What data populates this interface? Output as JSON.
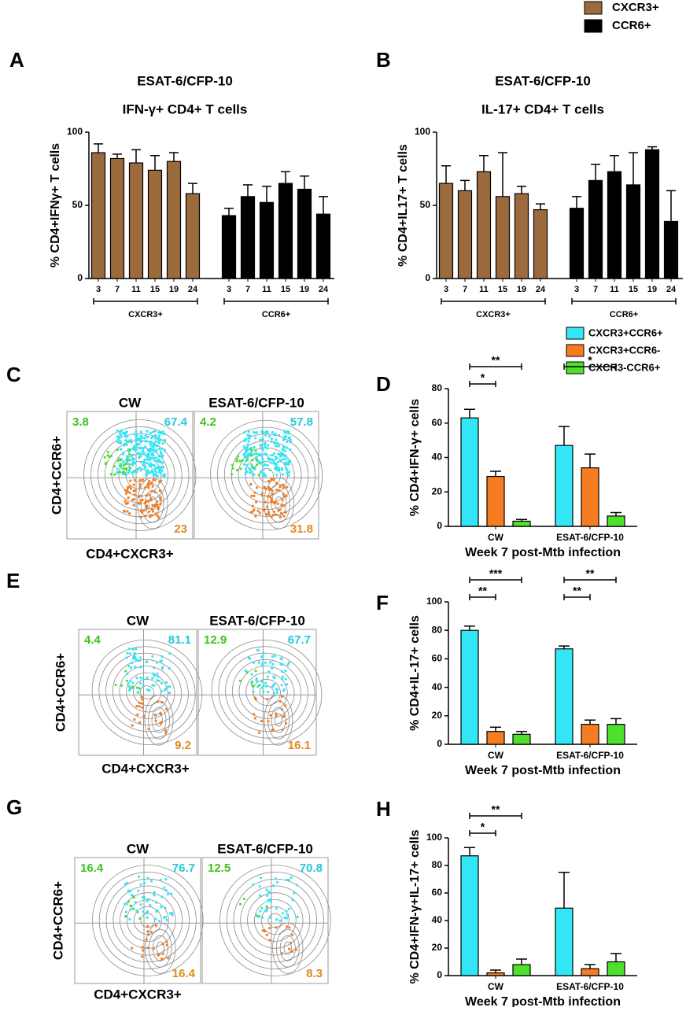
{
  "chart_data": [
    {
      "type": "bar",
      "panel": "A",
      "title": "ESAT-6/CFP-10",
      "subtitle": "IFN-γ+ CD4+ T cells",
      "y_label": "% CD4+IFNγ+ T cells",
      "categories": [
        "3",
        "7",
        "11",
        "15",
        "19",
        "24"
      ],
      "series": [
        {
          "name": "CXCR3+",
          "color": "#9b6a3d",
          "values": [
            86,
            82,
            79,
            74,
            80,
            58
          ],
          "errors": [
            6,
            3,
            9,
            10,
            6,
            7
          ]
        },
        {
          "name": "CCR6+",
          "color": "#000000",
          "values": [
            43,
            56,
            52,
            65,
            61,
            44
          ],
          "errors": [
            5,
            8,
            11,
            8,
            9,
            12
          ]
        }
      ],
      "ylim": [
        0,
        100
      ],
      "yticks": [
        0,
        50,
        100
      ]
    },
    {
      "type": "bar",
      "panel": "B",
      "title": "ESAT-6/CFP-10",
      "subtitle": "IL-17+ CD4+ T cells",
      "y_label": "% CD4+IL17+ T cells",
      "categories": [
        "3",
        "7",
        "11",
        "15",
        "19",
        "24"
      ],
      "series": [
        {
          "name": "CXCR3+",
          "color": "#9b6a3d",
          "values": [
            65,
            60,
            73,
            56,
            58,
            47
          ],
          "errors": [
            12,
            7,
            11,
            30,
            5,
            4
          ]
        },
        {
          "name": "CCR6+",
          "color": "#000000",
          "values": [
            48,
            67,
            73,
            64,
            88,
            39
          ],
          "errors": [
            8,
            11,
            11,
            22,
            2,
            21
          ]
        }
      ],
      "ylim": [
        0,
        100
      ],
      "yticks": [
        0,
        50,
        100
      ]
    },
    {
      "type": "grouped-bar",
      "panel": "D",
      "y_label": "% CD4+IFN-γ+ cells",
      "x_label": "Week 7 post-Mtb infection",
      "categories": [
        "CW",
        "ESAT-6/CFP-10"
      ],
      "series": [
        {
          "name": "CXCR3+CCR6+",
          "color": "#33e6f5",
          "values": [
            63,
            47
          ],
          "errors": [
            5,
            11
          ]
        },
        {
          "name": "CXCR3+CCR6-",
          "color": "#f57c20",
          "values": [
            29,
            34
          ],
          "errors": [
            3,
            8
          ]
        },
        {
          "name": "CXCR3-CCR6+",
          "color": "#4ee02c",
          "values": [
            3,
            6
          ],
          "errors": [
            1,
            2
          ]
        }
      ],
      "ylim": [
        0,
        80
      ],
      "yticks": [
        0,
        20,
        40,
        60,
        80
      ],
      "legend": "top-right",
      "significance": [
        {
          "label": "**",
          "category": 0,
          "between": [
            0,
            2
          ]
        },
        {
          "label": "*",
          "category": 0,
          "between": [
            0,
            1
          ]
        },
        {
          "label": "*",
          "category": 1,
          "between": [
            0,
            2
          ]
        }
      ]
    },
    {
      "type": "grouped-bar",
      "panel": "F",
      "y_label": "% CD4+IL-17+ cells",
      "x_label": "Week 7 post-Mtb infection",
      "categories": [
        "CW",
        "ESAT-6/CFP-10"
      ],
      "series": [
        {
          "color": "#33e6f5",
          "values": [
            80,
            67
          ],
          "errors": [
            3,
            2
          ]
        },
        {
          "color": "#f57c20",
          "values": [
            9,
            14
          ],
          "errors": [
            3,
            3
          ]
        },
        {
          "color": "#4ee02c",
          "values": [
            7,
            14
          ],
          "errors": [
            2,
            4
          ]
        }
      ],
      "ylim": [
        0,
        100
      ],
      "yticks": [
        0,
        20,
        40,
        60,
        80,
        100
      ],
      "significance": [
        {
          "label": "***",
          "category": 0,
          "between": [
            0,
            2
          ]
        },
        {
          "label": "**",
          "category": 0,
          "between": [
            0,
            1
          ]
        },
        {
          "label": "**",
          "category": 1,
          "between": [
            0,
            2
          ]
        },
        {
          "label": "**",
          "category": 1,
          "between": [
            0,
            1
          ]
        }
      ]
    },
    {
      "type": "grouped-bar",
      "panel": "H",
      "y_label": "% CD4+IFN-γ+IL-17+ cells",
      "x_label": "Week 7 post-Mtb infection",
      "categories": [
        "CW",
        "ESAT-6/CFP-10"
      ],
      "series": [
        {
          "color": "#33e6f5",
          "values": [
            87,
            49
          ],
          "errors": [
            6,
            26
          ]
        },
        {
          "color": "#f57c20",
          "values": [
            2,
            5
          ],
          "errors": [
            2,
            3
          ]
        },
        {
          "color": "#4ee02c",
          "values": [
            8,
            10
          ],
          "errors": [
            4,
            6
          ]
        }
      ],
      "ylim": [
        0,
        100
      ],
      "yticks": [
        0,
        20,
        40,
        60,
        80,
        100
      ],
      "significance": [
        {
          "label": "**",
          "category": 0,
          "between": [
            0,
            2
          ]
        },
        {
          "label": "*",
          "category": 0,
          "between": [
            0,
            1
          ]
        }
      ]
    }
  ],
  "flow_panels": [
    {
      "panel": "C",
      "y_label": "CD4+CCR6+",
      "x_label": "CD4+CXCR3+",
      "plots": [
        {
          "title": "CW",
          "top_left": 3.8,
          "top_right": 67.4,
          "bottom_right": 23
        },
        {
          "title": "ESAT-6/CFP-10",
          "top_left": 4.2,
          "top_right": 57.8,
          "bottom_right": 31.8
        }
      ]
    },
    {
      "panel": "E",
      "y_label": "CD4+CCR6+",
      "x_label": "CD4+CXCR3+",
      "plots": [
        {
          "title": "CW",
          "top_left": 4.4,
          "top_right": 81.1,
          "bottom_right": 9.2
        },
        {
          "title": "ESAT-6/CFP-10",
          "top_left": 12.9,
          "top_right": 67.7,
          "bottom_right": 16.1
        }
      ]
    },
    {
      "panel": "G",
      "y_label": "CD4+CCR6+",
      "x_label": "CD4+CXCR3+",
      "plots": [
        {
          "title": "CW",
          "top_left": 16.4,
          "top_right": 76.7,
          "bottom_right": 16.4
        },
        {
          "title": "ESAT-6/CFP-10",
          "top_left": 12.5,
          "top_right": 70.8,
          "bottom_right": 8.3
        }
      ]
    }
  ]
}
